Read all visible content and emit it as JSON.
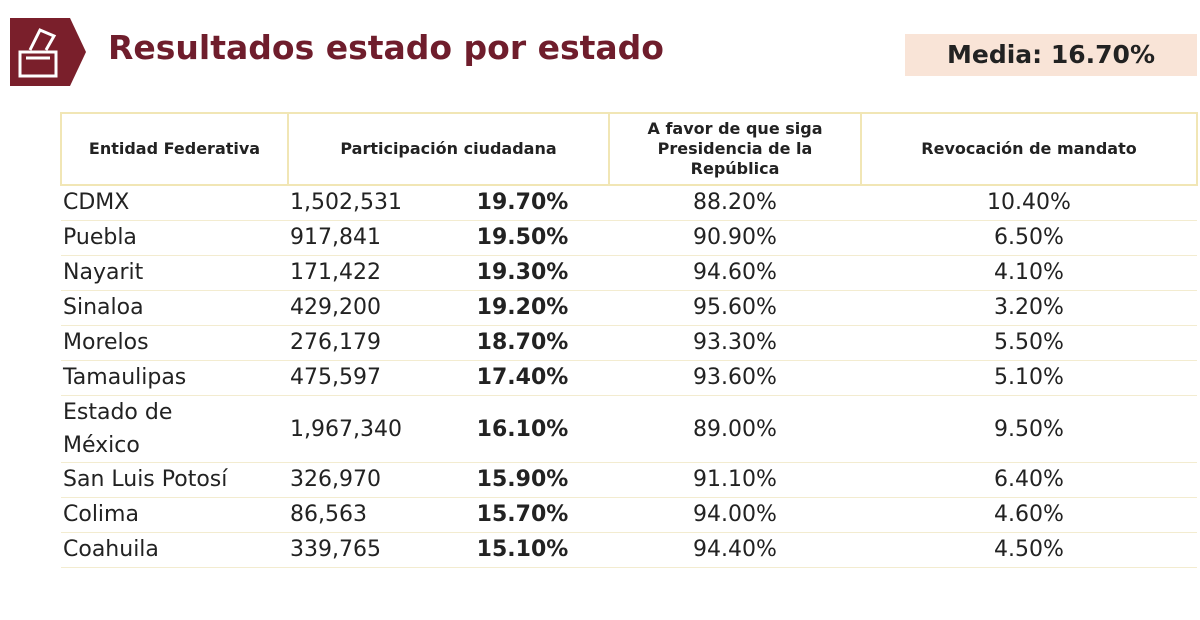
{
  "header": {
    "title": "Resultados estado por estado",
    "media": "Media: 16.70%"
  },
  "table": {
    "columns": [
      "Entidad Federativa",
      "Participación ciudadana",
      "A favor de que siga Presidencia de la República",
      "Revocación de mandato"
    ],
    "rows": [
      [
        "CDMX",
        "1,502,531",
        "19.70%",
        "88.20%",
        "10.40%"
      ],
      [
        "Puebla",
        "917,841",
        "19.50%",
        "90.90%",
        "6.50%"
      ],
      [
        "Nayarit",
        "171,422",
        "19.30%",
        "94.60%",
        "4.10%"
      ],
      [
        "Sinaloa",
        "429,200",
        "19.20%",
        "95.60%",
        "3.20%"
      ],
      [
        "Morelos",
        "276,179",
        "18.70%",
        "93.30%",
        "5.50%"
      ],
      [
        "Tamaulipas",
        "475,597",
        "17.40%",
        "93.60%",
        "5.10%"
      ],
      [
        "Estado de México",
        "1,967,340",
        "16.10%",
        "89.00%",
        "9.50%"
      ],
      [
        "San Luis Potosí",
        "326,970",
        "15.90%",
        "91.10%",
        "6.40%"
      ],
      [
        "Colima",
        "86,563",
        "15.70%",
        "94.00%",
        "4.60%"
      ],
      [
        "Coahuila",
        "339,765",
        "15.10%",
        "94.40%",
        "4.50%"
      ]
    ]
  }
}
